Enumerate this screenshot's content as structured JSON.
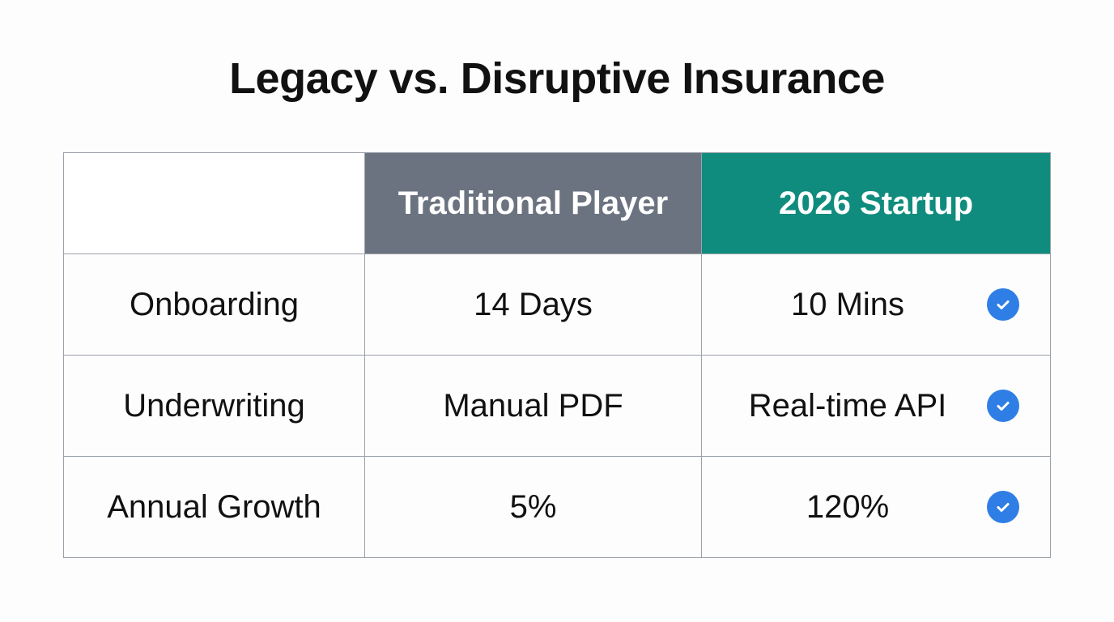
{
  "title": "Legacy vs. Disruptive Insurance",
  "columns": [
    "",
    "Traditional Player",
    "2026 Startup"
  ],
  "colors": {
    "traditional_header": "#6b7380",
    "startup_header": "#0f8c7d",
    "check": "#2f7ee6"
  },
  "rows": [
    {
      "label": "Onboarding",
      "traditional": "14 Days",
      "startup": "10 Mins",
      "icon": "check-circle-icon"
    },
    {
      "label": "Underwriting",
      "traditional": "Manual PDF",
      "startup": "Real-time API",
      "icon": "check-circle-icon"
    },
    {
      "label": "Annual Growth",
      "traditional": "5%",
      "startup": "120%",
      "icon": "check-circle-icon"
    }
  ]
}
